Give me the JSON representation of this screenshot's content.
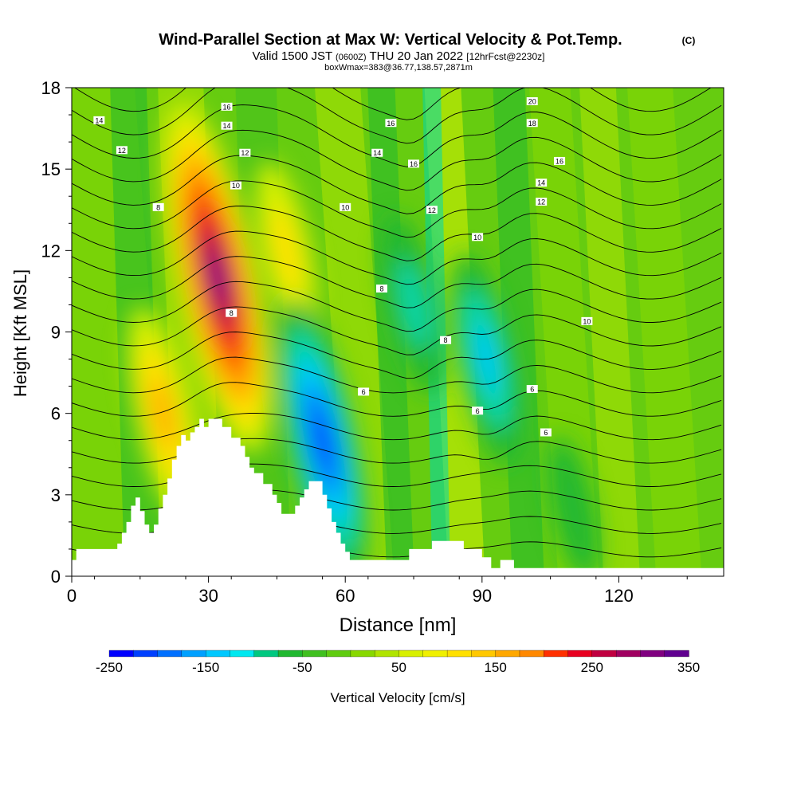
{
  "header": {
    "title": "Wind-Parallel Section at Max W: Vertical Velocity & Pot.Temp.",
    "copyright": "(C)",
    "valid_prefix": "Valid 1500 JST",
    "valid_utc": "(0600Z)",
    "valid_date": "THU 20 Jan 2022",
    "forecast": "[12hrFcst@2230z]",
    "boxwmax": "boxWmax=383@36.77,138.57,2871m"
  },
  "colors": {
    "background": "#ffffff",
    "terrain": "#ffffff",
    "contour": "#000000",
    "scale": [
      "#0000ff",
      "#0040ff",
      "#0070ff",
      "#00a0ff",
      "#00c8ff",
      "#00e8f0",
      "#00d8b0",
      "#00c880",
      "#20b830",
      "#40c020",
      "#60cc10",
      "#88d800",
      "#b0e400",
      "#d8f000",
      "#f0f000",
      "#ffe000",
      "#ffc800",
      "#ffa800",
      "#ff8800",
      "#ff6000",
      "#ff3000",
      "#e80020",
      "#c00040",
      "#a00060",
      "#800080",
      "#600090"
    ]
  },
  "chart_data": {
    "type": "heatmap",
    "x": {
      "label": "Distance [nm]",
      "range": [
        0,
        143
      ],
      "ticks": [
        "0",
        "30",
        "60",
        "90",
        "120"
      ]
    },
    "y": {
      "label": "Height [Kft MSL]",
      "range": [
        0,
        18
      ],
      "ticks": [
        "0",
        "3",
        "6",
        "9",
        "12",
        "15",
        "18"
      ]
    },
    "colorbar": {
      "label": "Vertical Velocity [cm/s]",
      "range": [
        -250,
        350
      ],
      "tick_labels": [
        "-250",
        "-150",
        "-50",
        "50",
        "150",
        "250",
        "350"
      ],
      "step": 25
    },
    "terrain_profile": {
      "x": [
        0,
        1,
        1,
        10,
        10,
        11,
        11,
        12,
        12,
        13,
        13,
        14,
        14,
        15,
        15,
        16,
        16,
        17,
        17,
        18,
        18,
        19,
        19,
        20,
        20,
        21,
        21,
        22,
        22,
        23,
        23,
        24,
        24,
        25,
        25,
        26,
        26,
        27,
        27,
        28,
        28,
        29,
        29,
        30,
        30,
        33,
        33,
        35,
        35,
        37,
        37,
        38,
        38,
        39,
        39,
        40,
        40,
        42,
        42,
        44,
        44,
        45,
        45,
        46,
        46,
        49,
        49,
        50,
        50,
        51,
        51,
        52,
        52,
        55,
        55,
        56,
        56,
        57,
        57,
        58,
        58,
        59,
        59,
        60,
        60,
        61,
        61,
        74,
        74,
        79,
        79,
        86,
        86,
        90,
        90,
        92,
        92,
        94,
        94,
        97,
        97,
        105,
        105,
        143
      ],
      "y": [
        0.6,
        0.6,
        1.0,
        1.0,
        1.2,
        1.2,
        1.6,
        1.6,
        2.0,
        2.0,
        2.6,
        2.6,
        2.9,
        2.9,
        2.4,
        2.4,
        1.9,
        1.9,
        1.6,
        1.6,
        1.9,
        1.9,
        2.5,
        2.5,
        3.0,
        3.0,
        3.6,
        3.6,
        4.3,
        4.3,
        4.8,
        4.8,
        5.2,
        5.2,
        5.0,
        5.0,
        5.3,
        5.3,
        5.5,
        5.5,
        5.8,
        5.8,
        5.5,
        5.5,
        5.8,
        5.8,
        5.5,
        5.5,
        5.1,
        5.1,
        4.8,
        4.8,
        4.4,
        4.4,
        4.0,
        4.0,
        3.8,
        3.8,
        3.4,
        3.4,
        3.0,
        3.0,
        2.7,
        2.7,
        2.3,
        2.3,
        2.6,
        2.6,
        2.9,
        2.9,
        3.2,
        3.2,
        3.5,
        3.5,
        3.0,
        3.0,
        2.5,
        2.5,
        2.0,
        2.0,
        1.6,
        1.6,
        1.2,
        1.2,
        0.9,
        0.9,
        0.6,
        0.6,
        1.0,
        1.0,
        1.3,
        1.3,
        1.0,
        1.0,
        0.7,
        0.7,
        0.3,
        0.3,
        0.6,
        0.6,
        0.3,
        0.3,
        0.3,
        0.3
      ]
    },
    "updrafts": [
      {
        "x": 32,
        "y": 11.0,
        "value": 350
      },
      {
        "x": 20,
        "y": 6.0,
        "value": 150
      },
      {
        "x": 47,
        "y": 12.0,
        "value": 100
      },
      {
        "x": 55,
        "y": 5.0,
        "value": -250
      },
      {
        "x": 91,
        "y": 8.0,
        "value": -150
      },
      {
        "x": 75,
        "y": 10.0,
        "value": -100
      },
      {
        "x": 110,
        "y": 2.5,
        "value": -50
      }
    ],
    "contour_labels": [
      {
        "text": "14",
        "x": 6,
        "y": 16.8
      },
      {
        "text": "12",
        "x": 11,
        "y": 15.7
      },
      {
        "text": "8",
        "x": 19,
        "y": 13.6
      },
      {
        "text": "16",
        "x": 34,
        "y": 17.3
      },
      {
        "text": "14",
        "x": 34,
        "y": 16.6
      },
      {
        "text": "12",
        "x": 38,
        "y": 15.6
      },
      {
        "text": "10",
        "x": 36,
        "y": 14.4
      },
      {
        "text": "8",
        "x": 35,
        "y": 9.7
      },
      {
        "text": "16",
        "x": 70,
        "y": 16.7
      },
      {
        "text": "14",
        "x": 67,
        "y": 15.6
      },
      {
        "text": "16",
        "x": 75,
        "y": 15.2
      },
      {
        "text": "10",
        "x": 60,
        "y": 13.6
      },
      {
        "text": "12",
        "x": 79,
        "y": 13.5
      },
      {
        "text": "8",
        "x": 68,
        "y": 10.6
      },
      {
        "text": "8",
        "x": 82,
        "y": 8.7
      },
      {
        "text": "6",
        "x": 64,
        "y": 6.8
      },
      {
        "text": "10",
        "x": 89,
        "y": 12.5
      },
      {
        "text": "6",
        "x": 89,
        "y": 6.1
      },
      {
        "text": "20",
        "x": 101,
        "y": 17.5
      },
      {
        "text": "18",
        "x": 101,
        "y": 16.7
      },
      {
        "text": "16",
        "x": 107,
        "y": 15.3
      },
      {
        "text": "14",
        "x": 103,
        "y": 14.5
      },
      {
        "text": "12",
        "x": 103,
        "y": 13.8
      },
      {
        "text": "10",
        "x": 113,
        "y": 9.4
      },
      {
        "text": "6",
        "x": 101,
        "y": 6.9
      },
      {
        "text": "6",
        "x": 104,
        "y": 5.3
      }
    ]
  }
}
